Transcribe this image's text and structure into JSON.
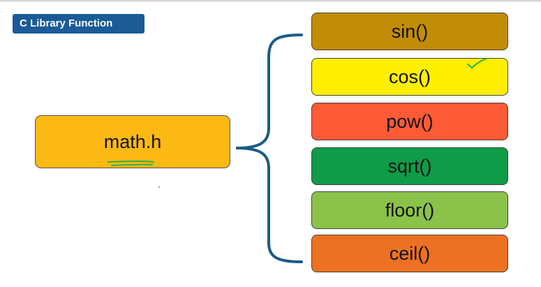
{
  "title": "C Library Function",
  "header": {
    "label": "math.h",
    "color": "#fdb913"
  },
  "functions": [
    {
      "label": "sin()",
      "color": "#c18c06"
    },
    {
      "label": "cos()",
      "color": "#ffef00"
    },
    {
      "label": "pow()",
      "color": "#ff5a36"
    },
    {
      "label": "sqrt()",
      "color": "#0f9b48"
    },
    {
      "label": "floor()",
      "color": "#8bc24a"
    },
    {
      "label": "ceil()",
      "color": "#ec7122"
    }
  ],
  "colors": {
    "title_bg": "#1a5b98",
    "bracket": "#1a5b8a",
    "annotation": "#2fb34a"
  }
}
